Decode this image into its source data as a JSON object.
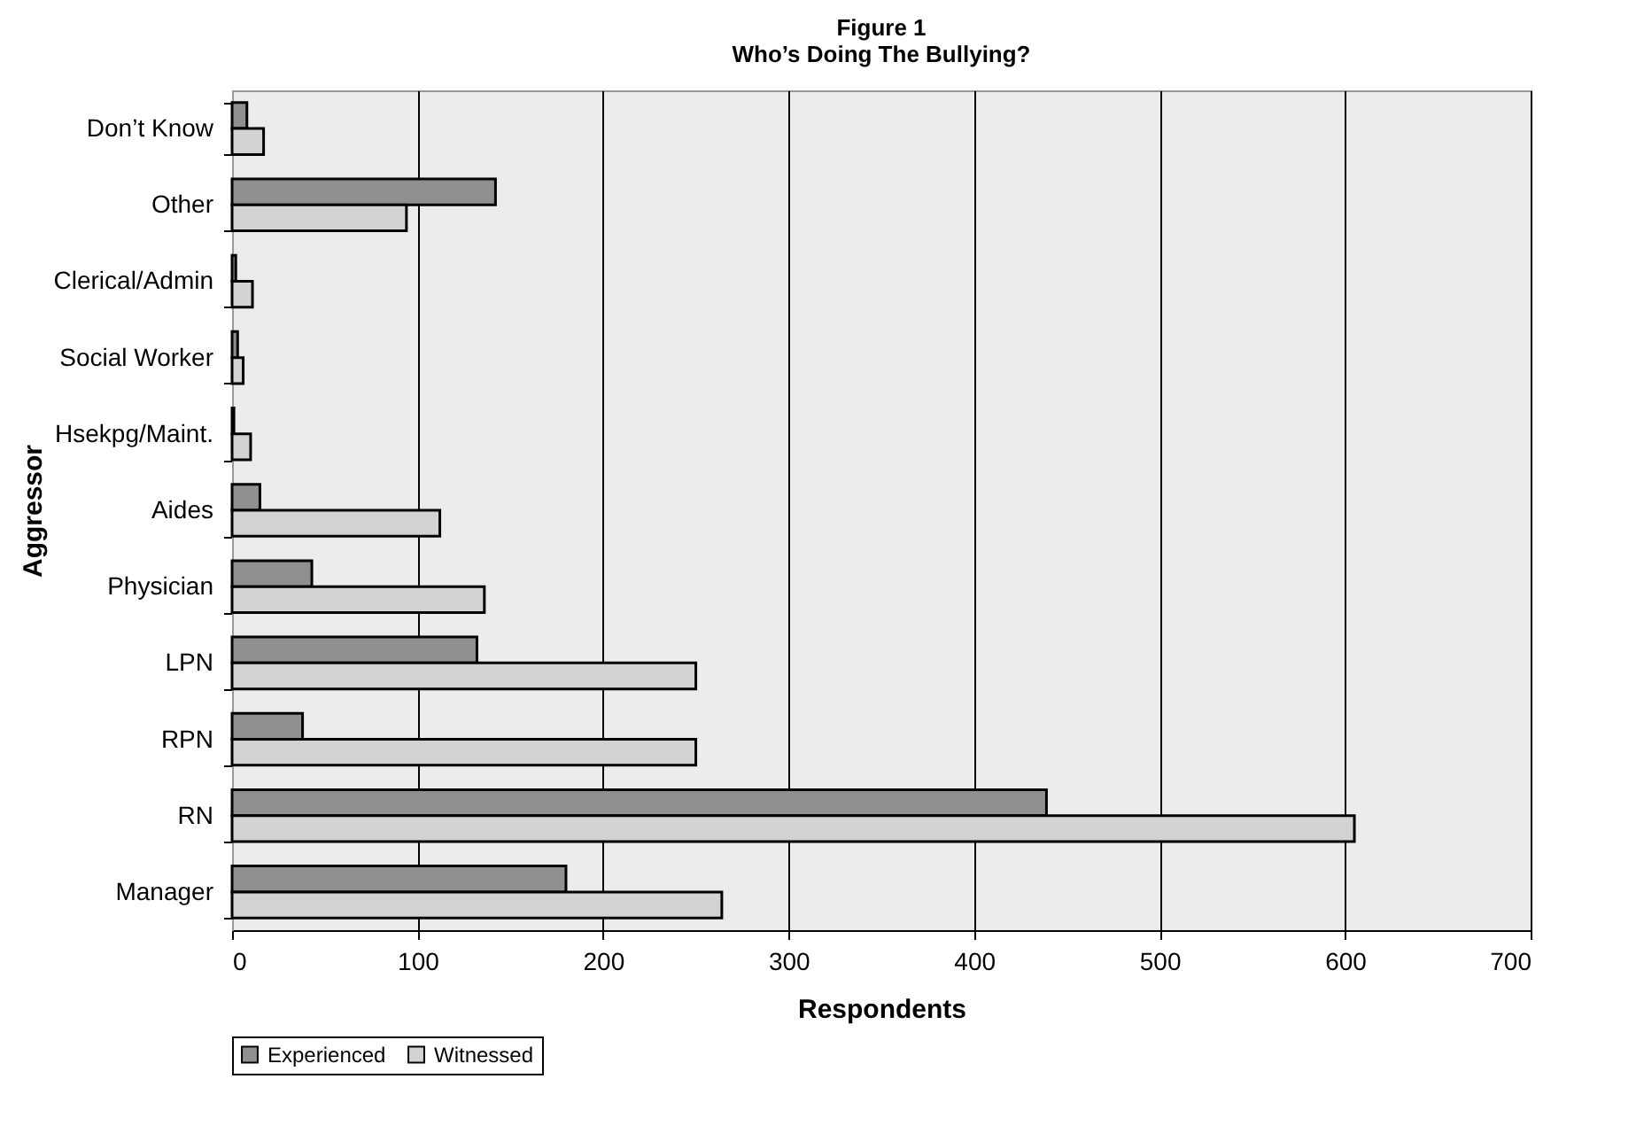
{
  "chart_data": {
    "type": "bar",
    "orientation": "horizontal",
    "title": "Figure 1",
    "subtitle": "Who’s Doing The Bullying?",
    "xlabel": "Respondents",
    "ylabel": "Aggressor",
    "categories": [
      "Don’t Know",
      "Other",
      "Clerical/Admin",
      "Social Worker",
      "Hsekpg/Maint.",
      "Aides",
      "Physician",
      "LPN",
      "RPN",
      "RN",
      "Manager"
    ],
    "series": [
      {
        "name": "Experienced",
        "color": "#909090",
        "values": [
          8,
          142,
          2,
          3,
          1,
          15,
          43,
          132,
          38,
          439,
          180
        ]
      },
      {
        "name": "Witnessed",
        "color": "#d3d3d3",
        "values": [
          17,
          94,
          11,
          6,
          10,
          112,
          136,
          250,
          250,
          605,
          264
        ]
      }
    ],
    "xlim": [
      0,
      700
    ],
    "xticks": [
      0,
      100,
      200,
      300,
      400,
      500,
      600,
      700
    ],
    "grid": "x",
    "legend": "bottom"
  }
}
